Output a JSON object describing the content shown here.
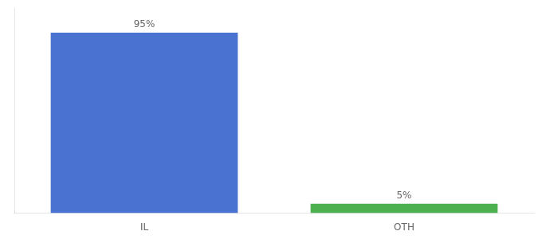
{
  "chart_data": {
    "type": "bar",
    "categories": [
      "IL",
      "OTH"
    ],
    "values": [
      95,
      5
    ],
    "value_labels": [
      "95%",
      "5%"
    ],
    "colors": [
      "#4a72d1",
      "#4caf50"
    ],
    "ylim": [
      0,
      108
    ],
    "data_labels": true,
    "tick_labels": "x",
    "grid": false
  }
}
